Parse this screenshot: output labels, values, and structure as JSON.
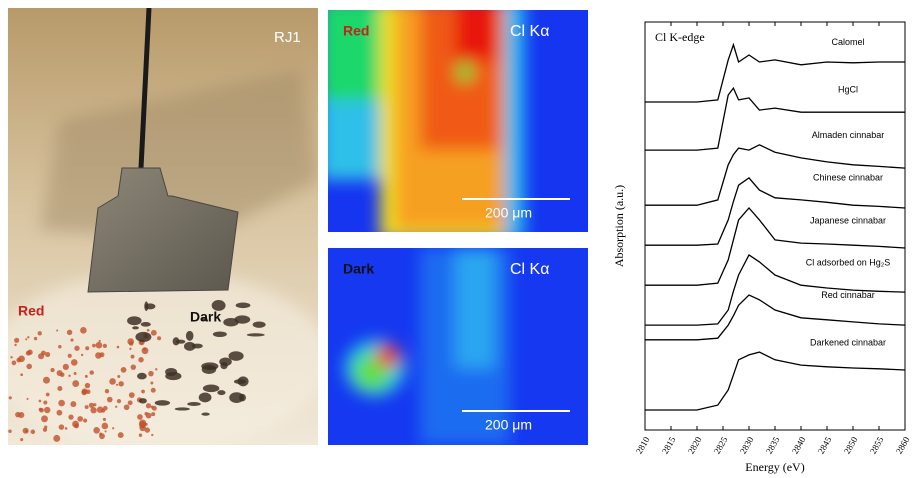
{
  "photo": {
    "label": "RJ1",
    "red_label": "Red",
    "dark_label": "Dark"
  },
  "maps": [
    {
      "sample": "Red",
      "element": "Cl Kα",
      "scale": "200 μm"
    },
    {
      "sample": "Dark",
      "element": "Cl Kα",
      "scale": "200 μm"
    }
  ],
  "chart_data": {
    "type": "line",
    "annotation": "Cl K-edge",
    "xlabel": "Energy (eV)",
    "ylabel": "Absorption (a.u.)",
    "x": [
      2810,
      2820,
      2824,
      2826,
      2827,
      2828,
      2830,
      2832,
      2835,
      2840,
      2845,
      2850,
      2855,
      2860
    ],
    "xlim": [
      2810,
      2860
    ],
    "xticks": [
      2810,
      2815,
      2820,
      2825,
      2830,
      2835,
      2840,
      2845,
      2850,
      2855,
      2860
    ],
    "ylim": [
      0,
      100
    ],
    "series": [
      {
        "name": "Calomel",
        "color": "#000000",
        "values": [
          80.4,
          80.4,
          80.9,
          90.7,
          94.4,
          90.2,
          91.9,
          90.2,
          90.7,
          89.5,
          90.2,
          90.0,
          90.2,
          90.2
        ]
      },
      {
        "name": "HgCl",
        "color": "#000000",
        "values": [
          68.6,
          68.6,
          69.1,
          82.1,
          83.8,
          80.9,
          81.4,
          78.4,
          78.9,
          77.9,
          77.9,
          77.9,
          77.9,
          77.9
        ]
      },
      {
        "name": "Almaden cinnabar",
        "color": "#000000",
        "values": [
          55.1,
          55.1,
          56.4,
          65.0,
          67.5,
          69.1,
          68.6,
          69.9,
          68.1,
          66.7,
          65.7,
          65.0,
          64.6,
          64.2
        ]
      },
      {
        "name": "Chinese cinnabar",
        "color": "#000000",
        "values": [
          45.3,
          45.3,
          45.6,
          51.5,
          56.0,
          60.0,
          61.8,
          58.8,
          56.9,
          56.4,
          55.8,
          55.1,
          54.8,
          54.4
        ]
      },
      {
        "name": "Japanese cinnabar",
        "color": "#000000",
        "values": [
          35.5,
          35.5,
          36.0,
          41.7,
          46.6,
          51.5,
          54.4,
          51.5,
          46.6,
          45.8,
          45.6,
          45.3,
          45.0,
          44.6
        ]
      },
      {
        "name": "Cl adsorbed on Hg₂S",
        "color": "#000000",
        "values": [
          25.7,
          25.7,
          26.0,
          29.4,
          34.0,
          38.0,
          42.9,
          41.2,
          38.0,
          35.5,
          34.8,
          34.3,
          34.0,
          33.8
        ]
      },
      {
        "name": "Red cinnabar",
        "color": "#000000",
        "values": [
          22.1,
          22.1,
          22.5,
          25.7,
          28.0,
          30.6,
          33.1,
          31.9,
          29.4,
          27.5,
          27.0,
          26.5,
          26.0,
          25.7
        ]
      },
      {
        "name": "Darkened cinnabar",
        "color": "#000000",
        "values": [
          4.9,
          4.9,
          6.1,
          9.8,
          13.5,
          17.2,
          18.4,
          19.1,
          17.2,
          15.9,
          15.5,
          15.2,
          15.0,
          14.7
        ]
      }
    ]
  }
}
